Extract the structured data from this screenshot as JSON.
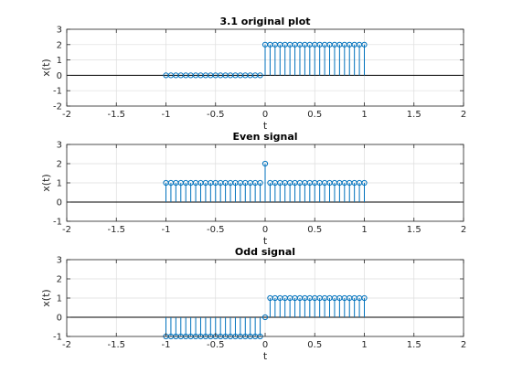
{
  "colors": {
    "stem": "#0072BD",
    "grid": "#dddddd",
    "axis": "#262626",
    "zero_line": "#000000",
    "background": "#ffffff"
  },
  "chart_data": [
    {
      "type": "stem",
      "title": "3.1 original plot",
      "xlabel": "t",
      "ylabel": "x(t)",
      "xlim": [
        -2,
        2
      ],
      "ylim": [
        -2,
        3
      ],
      "xticks": [
        "-2",
        "-1.5",
        "-1",
        "-0.5",
        "0",
        "0.5",
        "1",
        "1.5",
        "2"
      ],
      "yticks": [
        "-2",
        "-1",
        "0",
        "1",
        "2",
        "3"
      ],
      "grid": true,
      "t": [
        -1,
        -0.95,
        -0.9,
        -0.85,
        -0.8,
        -0.75,
        -0.7,
        -0.65,
        -0.6,
        -0.55,
        -0.5,
        -0.45,
        -0.4,
        -0.35,
        -0.3,
        -0.25,
        -0.2,
        -0.15,
        -0.1,
        -0.05,
        0,
        0.05,
        0.1,
        0.15,
        0.2,
        0.25,
        0.3,
        0.35,
        0.4,
        0.45,
        0.5,
        0.55,
        0.6,
        0.65,
        0.7,
        0.75,
        0.8,
        0.85,
        0.9,
        0.95,
        1
      ],
      "values": [
        0,
        0,
        0,
        0,
        0,
        0,
        0,
        0,
        0,
        0,
        0,
        0,
        0,
        0,
        0,
        0,
        0,
        0,
        0,
        0,
        2,
        2,
        2,
        2,
        2,
        2,
        2,
        2,
        2,
        2,
        2,
        2,
        2,
        2,
        2,
        2,
        2,
        2,
        2,
        2,
        2
      ]
    },
    {
      "type": "stem",
      "title": "Even signal",
      "xlabel": "t",
      "ylabel": "x(t)",
      "xlim": [
        -2,
        2
      ],
      "ylim": [
        -1,
        3
      ],
      "xticks": [
        "-2",
        "-1.5",
        "-1",
        "-0.5",
        "0",
        "0.5",
        "1",
        "1.5",
        "2"
      ],
      "yticks": [
        "-1",
        "0",
        "1",
        "2",
        "3"
      ],
      "grid": true,
      "t": [
        -1,
        -0.95,
        -0.9,
        -0.85,
        -0.8,
        -0.75,
        -0.7,
        -0.65,
        -0.6,
        -0.55,
        -0.5,
        -0.45,
        -0.4,
        -0.35,
        -0.3,
        -0.25,
        -0.2,
        -0.15,
        -0.1,
        -0.05,
        0,
        0.05,
        0.1,
        0.15,
        0.2,
        0.25,
        0.3,
        0.35,
        0.4,
        0.45,
        0.5,
        0.55,
        0.6,
        0.65,
        0.7,
        0.75,
        0.8,
        0.85,
        0.9,
        0.95,
        1
      ],
      "values": [
        1,
        1,
        1,
        1,
        1,
        1,
        1,
        1,
        1,
        1,
        1,
        1,
        1,
        1,
        1,
        1,
        1,
        1,
        1,
        1,
        2,
        1,
        1,
        1,
        1,
        1,
        1,
        1,
        1,
        1,
        1,
        1,
        1,
        1,
        1,
        1,
        1,
        1,
        1,
        1,
        1
      ]
    },
    {
      "type": "stem",
      "title": "Odd signal",
      "xlabel": "t",
      "ylabel": "x(t)",
      "xlim": [
        -2,
        2
      ],
      "ylim": [
        -1,
        3
      ],
      "xticks": [
        "-2",
        "-1.5",
        "-1",
        "-0.5",
        "0",
        "0.5",
        "1",
        "1.5",
        "2"
      ],
      "yticks": [
        "-1",
        "0",
        "1",
        "2",
        "3"
      ],
      "grid": true,
      "t": [
        -1,
        -0.95,
        -0.9,
        -0.85,
        -0.8,
        -0.75,
        -0.7,
        -0.65,
        -0.6,
        -0.55,
        -0.5,
        -0.45,
        -0.4,
        -0.35,
        -0.3,
        -0.25,
        -0.2,
        -0.15,
        -0.1,
        -0.05,
        0,
        0.05,
        0.1,
        0.15,
        0.2,
        0.25,
        0.3,
        0.35,
        0.4,
        0.45,
        0.5,
        0.55,
        0.6,
        0.65,
        0.7,
        0.75,
        0.8,
        0.85,
        0.9,
        0.95,
        1
      ],
      "values": [
        -1,
        -1,
        -1,
        -1,
        -1,
        -1,
        -1,
        -1,
        -1,
        -1,
        -1,
        -1,
        -1,
        -1,
        -1,
        -1,
        -1,
        -1,
        -1,
        -1,
        0,
        1,
        1,
        1,
        1,
        1,
        1,
        1,
        1,
        1,
        1,
        1,
        1,
        1,
        1,
        1,
        1,
        1,
        1,
        1,
        1
      ]
    }
  ]
}
